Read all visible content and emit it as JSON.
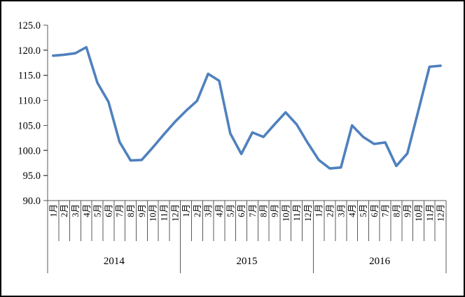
{
  "chart_data": {
    "type": "line",
    "title": "",
    "legend": "none",
    "grid": "off",
    "line_color": "#4F81BD",
    "axis_line_color": "#595959",
    "x_axis": {
      "month_labels": [
        "1月",
        "2月",
        "3月",
        "4月",
        "5月",
        "6月",
        "7月",
        "8月",
        "9月",
        "10月",
        "11月",
        "12月"
      ],
      "year_labels": [
        "2014",
        "2015",
        "2016"
      ]
    },
    "y_axis": {
      "min": 90,
      "max": 125,
      "tick_step": 5,
      "tick_labels": [
        "90.0",
        "95.0",
        "100.0",
        "105.0",
        "110.0",
        "115.0",
        "120.0",
        "125.0"
      ]
    },
    "series": [
      {
        "name": "2014",
        "values": [
          118.9,
          119.1,
          119.4,
          120.6,
          113.5,
          109.7,
          101.7,
          98.0,
          98.1,
          100.6,
          103.2,
          105.7
        ]
      },
      {
        "name": "2015",
        "values": [
          107.9,
          109.9,
          115.3,
          113.9,
          103.4,
          99.3,
          103.6,
          102.7,
          105.2,
          107.6,
          105.2,
          101.5
        ]
      },
      {
        "name": "2016",
        "values": [
          98.1,
          96.4,
          96.6,
          105.0,
          102.7,
          101.3,
          101.6,
          96.9,
          99.4,
          108.0,
          116.7,
          116.9
        ]
      }
    ]
  }
}
